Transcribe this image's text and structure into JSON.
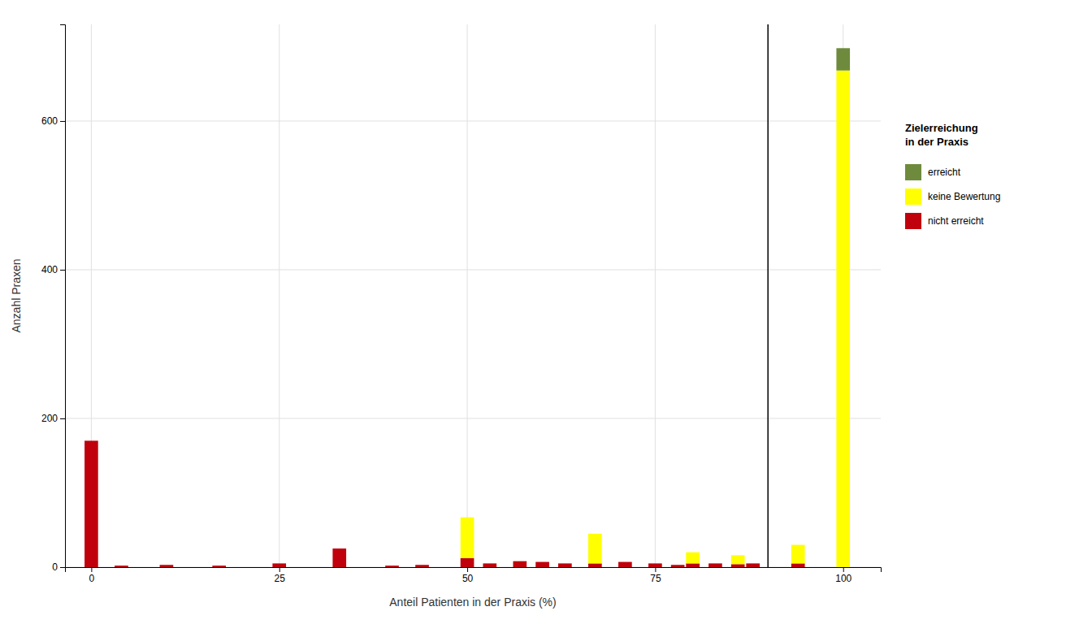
{
  "chart_data": {
    "type": "bar",
    "stacked": true,
    "xlabel": "Anteil Patienten in der Praxis (%)",
    "ylabel": "Anzahl Praxen",
    "legend_title": "Zielerreichung\nin der Praxis",
    "legend": "right",
    "grid": true,
    "x": [
      0,
      4,
      7,
      10,
      13,
      17,
      20,
      25,
      29,
      33,
      40,
      44,
      47,
      50,
      53,
      57,
      60,
      63,
      67,
      71,
      75,
      78,
      80,
      83,
      86,
      88,
      91,
      94,
      97,
      100
    ],
    "series": [
      {
        "name": "nicht erreicht",
        "color": "#c0000c",
        "values": [
          170,
          2,
          0,
          3,
          0,
          2,
          0,
          5,
          0,
          25,
          2,
          3,
          0,
          12,
          5,
          8,
          7,
          5,
          5,
          7,
          5,
          3,
          5,
          5,
          4,
          5,
          0,
          5,
          0,
          0
        ]
      },
      {
        "name": "keine Bewertung",
        "color": "#ffff00",
        "values": [
          0,
          0,
          0,
          0,
          0,
          0,
          0,
          0,
          0,
          0,
          0,
          0,
          0,
          55,
          0,
          0,
          0,
          0,
          40,
          0,
          0,
          0,
          15,
          0,
          12,
          0,
          0,
          25,
          0,
          668
        ]
      },
      {
        "name": "erreicht",
        "color": "#6e8b3d",
        "values": [
          0,
          0,
          0,
          0,
          0,
          0,
          0,
          0,
          0,
          0,
          0,
          0,
          0,
          0,
          0,
          0,
          0,
          0,
          0,
          0,
          0,
          0,
          0,
          0,
          0,
          0,
          0,
          0,
          0,
          30
        ]
      }
    ],
    "vline_x": 90,
    "xlim": [
      -3.5,
      105
    ],
    "ylim": [
      0,
      730
    ],
    "xticks": [
      0,
      25,
      50,
      75,
      100
    ],
    "yticks": [
      0,
      200,
      400,
      600
    ]
  }
}
